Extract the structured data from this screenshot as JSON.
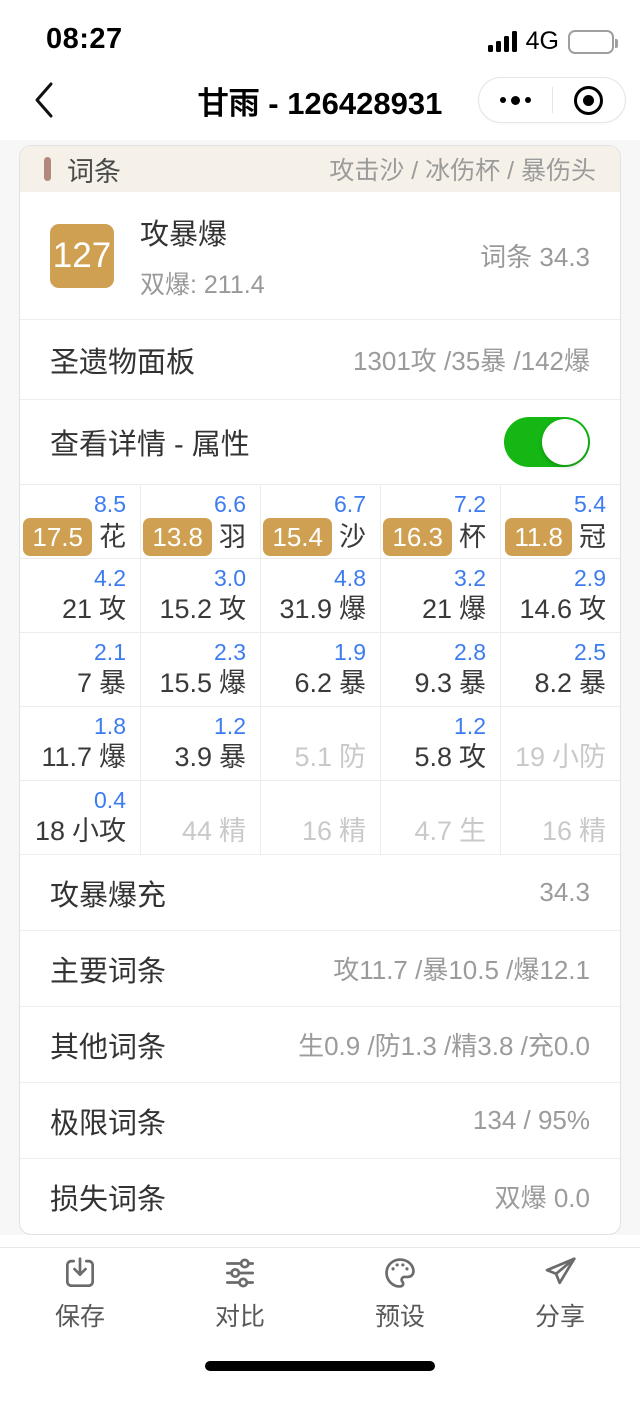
{
  "status_bar": {
    "time": "08:27",
    "network": "4G",
    "battery_percent": 45,
    "signal_bars": 4
  },
  "nav": {
    "title": "甘雨 - 126428931",
    "back_icon": "chevron-left-icon",
    "more_icon": "more-dots-icon",
    "target_icon": "circle-dot-icon"
  },
  "card": {
    "header": {
      "title": "词条",
      "subtitle": "攻击沙 / 冰伤杯 / 暴伤头"
    },
    "score": {
      "value": "127",
      "build": "攻暴爆",
      "crit": "双爆: 211.4",
      "right": "词条 34.3"
    },
    "panel": {
      "label": "圣遗物面板",
      "value": "1301攻 /35暴 /142爆"
    },
    "toggle": {
      "label": "查看详情 - 属性",
      "state": "on"
    },
    "grid": {
      "rows": [
        [
          {
            "sub": "8.5",
            "value": "17.5",
            "label": "花",
            "badge": true
          },
          {
            "sub": "6.6",
            "value": "13.8",
            "label": "羽",
            "badge": true
          },
          {
            "sub": "6.7",
            "value": "15.4",
            "label": "沙",
            "badge": true
          },
          {
            "sub": "7.2",
            "value": "16.3",
            "label": "杯",
            "badge": true
          },
          {
            "sub": "5.4",
            "value": "11.8",
            "label": "冠",
            "badge": true
          }
        ],
        [
          {
            "sub": "4.2",
            "value": "21",
            "label": "攻"
          },
          {
            "sub": "3.0",
            "value": "15.2",
            "label": "攻"
          },
          {
            "sub": "4.8",
            "value": "31.9",
            "label": "爆"
          },
          {
            "sub": "3.2",
            "value": "21",
            "label": "爆"
          },
          {
            "sub": "2.9",
            "value": "14.6",
            "label": "攻"
          }
        ],
        [
          {
            "sub": "2.1",
            "value": "7",
            "label": "暴"
          },
          {
            "sub": "2.3",
            "value": "15.5",
            "label": "爆"
          },
          {
            "sub": "1.9",
            "value": "6.2",
            "label": "暴"
          },
          {
            "sub": "2.8",
            "value": "9.3",
            "label": "暴"
          },
          {
            "sub": "2.5",
            "value": "8.2",
            "label": "暴"
          }
        ],
        [
          {
            "sub": "1.8",
            "value": "11.7",
            "label": "爆"
          },
          {
            "sub": "1.2",
            "value": "3.9",
            "label": "暴"
          },
          {
            "sub": "",
            "value": "5.1",
            "label": "防",
            "muted": true
          },
          {
            "sub": "1.2",
            "value": "5.8",
            "label": "攻"
          },
          {
            "sub": "",
            "value": "19",
            "label": "小防",
            "muted": true
          }
        ],
        [
          {
            "sub": "0.4",
            "value": "18",
            "label": "小攻"
          },
          {
            "sub": "",
            "value": "44",
            "label": "精",
            "muted": true
          },
          {
            "sub": "",
            "value": "16",
            "label": "精",
            "muted": true
          },
          {
            "sub": "",
            "value": "4.7",
            "label": "生",
            "muted": true
          },
          {
            "sub": "",
            "value": "16",
            "label": "精",
            "muted": true
          }
        ]
      ]
    },
    "summary": [
      {
        "label": "攻暴爆充",
        "value": "34.3"
      },
      {
        "label": "主要词条",
        "value": "攻11.7 /暴10.5 /爆12.1"
      },
      {
        "label": "其他词条",
        "value": "生0.9 /防1.3 /精3.8 /充0.0"
      },
      {
        "label": "极限词条",
        "value": "134 / 95%"
      },
      {
        "label": "损失词条",
        "value": "双爆 0.0"
      }
    ]
  },
  "tabbar": {
    "items": [
      {
        "label": "保存",
        "icon": "save-icon"
      },
      {
        "label": "对比",
        "icon": "compare-icon"
      },
      {
        "label": "预设",
        "icon": "palette-icon"
      },
      {
        "label": "分享",
        "icon": "share-icon"
      }
    ]
  },
  "colors": {
    "accent_gold": "#cfa052",
    "accent_blue": "#3d7cf0",
    "toggle_green": "#14b714",
    "header_beige": "#f6f1e8",
    "marker_rose": "#b3887c",
    "muted_text": "#c9c9c9"
  }
}
